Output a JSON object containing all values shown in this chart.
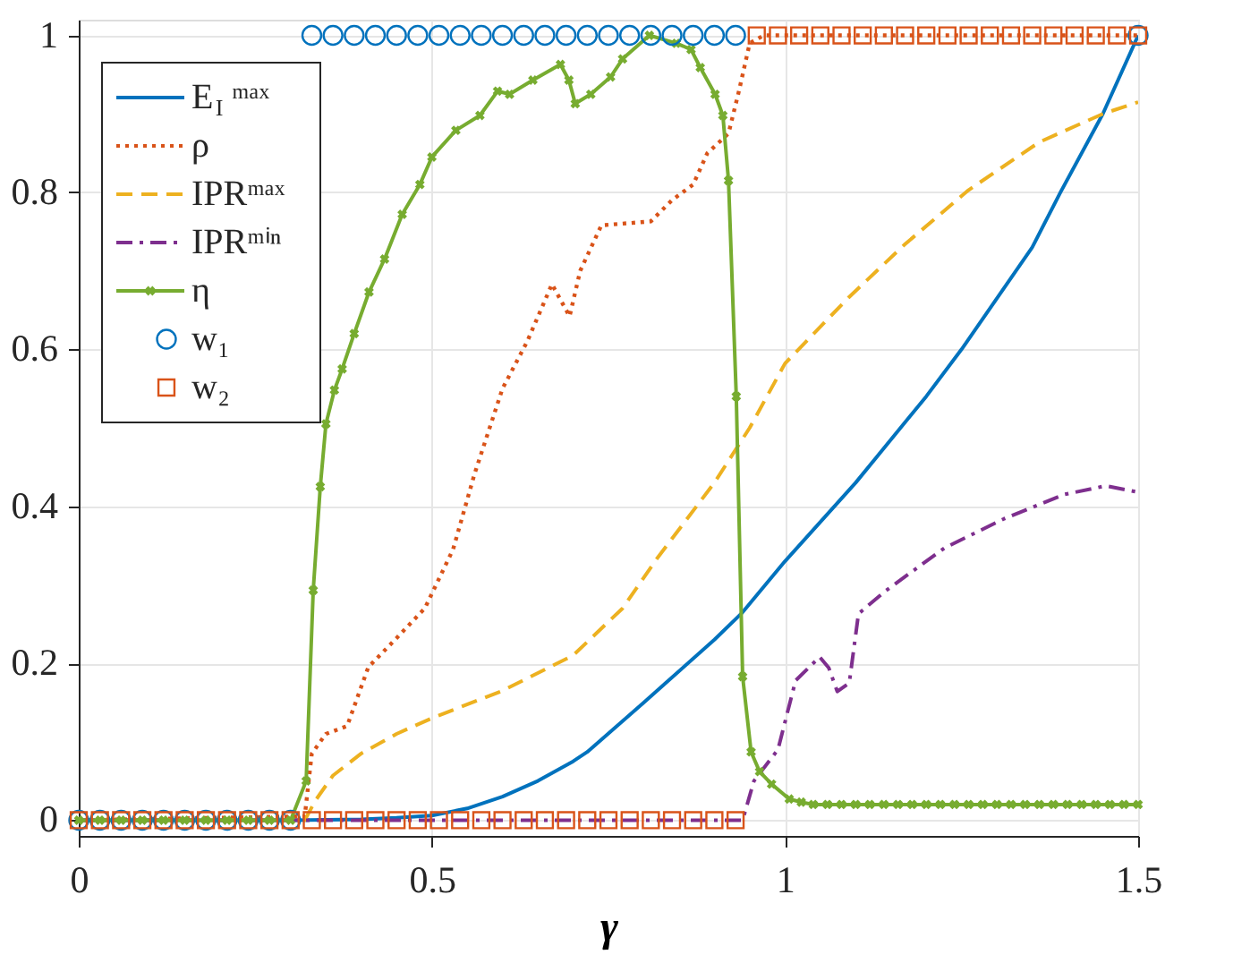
{
  "chart_data": {
    "type": "line",
    "xlabel": "γ",
    "xlim": [
      0,
      1.5
    ],
    "ylim": [
      -0.02,
      1.02
    ],
    "xticks": [
      0,
      0.5,
      1,
      1.5
    ],
    "yticks": [
      0,
      0.2,
      0.4,
      0.6,
      0.8,
      1
    ],
    "grid": true,
    "legend": "top left",
    "series": [
      {
        "name": "E$_{I}$ᵐᵃˣ",
        "color": "#0072bd",
        "line_style": "solid",
        "x": [
          0,
          0.3,
          0.4,
          0.45,
          0.5,
          0.55,
          0.6,
          0.65,
          0.7,
          0.72,
          0.8,
          0.9,
          0.94,
          1.0,
          1.1,
          1.2,
          1.25,
          1.3,
          1.35,
          1.39,
          1.45,
          1.5
        ],
        "values": [
          0,
          0,
          0.001,
          0.003,
          0.006,
          0.015,
          0.03,
          0.05,
          0.075,
          0.087,
          0.15,
          0.23,
          0.265,
          0.33,
          0.43,
          0.54,
          0.6,
          0.665,
          0.73,
          0.8,
          0.9,
          1.0
        ]
      },
      {
        "name": "ρ",
        "color": "#d95319",
        "line_style": "dotted",
        "x": [
          0,
          0.32,
          0.33,
          0.35,
          0.38,
          0.41,
          0.45,
          0.49,
          0.53,
          0.56,
          0.6,
          0.635,
          0.67,
          0.695,
          0.71,
          0.74,
          0.81,
          0.84,
          0.87,
          0.89,
          0.92,
          0.935,
          0.95,
          0.97,
          1.0,
          1.5
        ],
        "values": [
          0,
          0.005,
          0.085,
          0.11,
          0.12,
          0.195,
          0.232,
          0.27,
          0.345,
          0.44,
          0.55,
          0.61,
          0.683,
          0.642,
          0.7,
          0.758,
          0.763,
          0.79,
          0.81,
          0.85,
          0.875,
          0.93,
          0.99,
          1.0,
          1.0,
          1.0
        ]
      },
      {
        "name": "IPRᵐᵃˣ",
        "color": "#edb120",
        "line_style": "dashed",
        "x": [
          0,
          0.32,
          0.335,
          0.36,
          0.4,
          0.45,
          0.5,
          0.6,
          0.7,
          0.77,
          0.82,
          0.9,
          0.95,
          1.0,
          1.09,
          1.17,
          1.26,
          1.36,
          1.45,
          1.5
        ],
        "values": [
          0,
          0,
          0.025,
          0.057,
          0.085,
          0.11,
          0.13,
          0.165,
          0.21,
          0.27,
          0.335,
          0.43,
          0.5,
          0.582,
          0.666,
          0.734,
          0.803,
          0.864,
          0.9,
          0.915
        ]
      },
      {
        "name": "IPRᵐⁱⁿ",
        "color": "#7e2f8e",
        "line_style": "dashdot",
        "x": [
          0,
          0.94,
          0.956,
          0.99,
          1.015,
          1.049,
          1.062,
          1.074,
          1.091,
          1.104,
          1.142,
          1.226,
          1.31,
          1.395,
          1.454,
          1.5
        ],
        "values": [
          0,
          0,
          0.05,
          0.09,
          0.178,
          0.208,
          0.194,
          0.164,
          0.175,
          0.263,
          0.292,
          0.347,
          0.384,
          0.415,
          0.426,
          0.418
        ]
      },
      {
        "name": "η",
        "color": "#77ac30",
        "line_style": "solid",
        "marker": "cross",
        "x": [
          0,
          0.03,
          0.06,
          0.09,
          0.12,
          0.15,
          0.18,
          0.21,
          0.24,
          0.27,
          0.3,
          0.322,
          0.332,
          0.342,
          0.35,
          0.362,
          0.373,
          0.39,
          0.411,
          0.433,
          0.458,
          0.483,
          0.5,
          0.534,
          0.568,
          0.593,
          0.61,
          0.643,
          0.682,
          0.694,
          0.703,
          0.725,
          0.753,
          0.77,
          0.808,
          0.846,
          0.867,
          0.88,
          0.901,
          0.912,
          0.92,
          0.931,
          0.94,
          0.952,
          0.964,
          0.981,
          1.006,
          1.023,
          1.04,
          1.06,
          1.08,
          1.1,
          1.12,
          1.14,
          1.16,
          1.18,
          1.2,
          1.22,
          1.24,
          1.26,
          1.28,
          1.3,
          1.32,
          1.34,
          1.36,
          1.38,
          1.4,
          1.42,
          1.44,
          1.46,
          1.48,
          1.5
        ],
        "values": [
          0,
          0,
          0,
          0,
          0,
          0,
          0,
          0,
          0,
          0,
          0,
          0.05,
          0.293,
          0.425,
          0.505,
          0.548,
          0.575,
          0.62,
          0.673,
          0.715,
          0.772,
          0.81,
          0.845,
          0.879,
          0.898,
          0.929,
          0.925,
          0.943,
          0.963,
          0.943,
          0.913,
          0.925,
          0.947,
          0.97,
          1.0,
          0.99,
          0.982,
          0.959,
          0.925,
          0.898,
          0.815,
          0.54,
          0.183,
          0.087,
          0.062,
          0.046,
          0.027,
          0.023,
          0.02,
          0.02,
          0.02,
          0.02,
          0.02,
          0.02,
          0.02,
          0.02,
          0.02,
          0.02,
          0.02,
          0.02,
          0.02,
          0.02,
          0.02,
          0.02,
          0.02,
          0.02,
          0.02,
          0.02,
          0.02,
          0.02,
          0.02,
          0.02
        ]
      },
      {
        "name": "w₁",
        "color": "#0072bd",
        "type": "scatter",
        "marker": "circle",
        "x": [
          0,
          0.03,
          0.06,
          0.09,
          0.12,
          0.15,
          0.18,
          0.21,
          0.24,
          0.27,
          0.3,
          0.33,
          0.36,
          0.39,
          0.42,
          0.45,
          0.48,
          0.51,
          0.54,
          0.57,
          0.6,
          0.63,
          0.66,
          0.69,
          0.72,
          0.75,
          0.78,
          0.81,
          0.84,
          0.87,
          0.9,
          0.93,
          0.96,
          0.99,
          1.02,
          1.05,
          1.08,
          1.11,
          1.14,
          1.17,
          1.2,
          1.23,
          1.26,
          1.29,
          1.32,
          1.35,
          1.38,
          1.41,
          1.44,
          1.47,
          1.5
        ],
        "values": [
          0,
          0,
          0,
          0,
          0,
          0,
          0,
          0,
          0,
          0,
          0,
          1,
          1,
          1,
          1,
          1,
          1,
          1,
          1,
          1,
          1,
          1,
          1,
          1,
          1,
          1,
          1,
          1,
          1,
          1,
          1,
          1,
          null,
          null,
          null,
          null,
          null,
          null,
          null,
          null,
          null,
          null,
          null,
          null,
          null,
          null,
          null,
          null,
          null,
          null,
          1
        ]
      },
      {
        "name": "w₂",
        "color": "#d95319",
        "type": "scatter",
        "marker": "square",
        "x": [
          0,
          0.03,
          0.06,
          0.09,
          0.12,
          0.15,
          0.18,
          0.21,
          0.24,
          0.27,
          0.3,
          0.33,
          0.36,
          0.39,
          0.42,
          0.45,
          0.48,
          0.51,
          0.54,
          0.57,
          0.6,
          0.63,
          0.66,
          0.69,
          0.72,
          0.75,
          0.78,
          0.81,
          0.84,
          0.87,
          0.9,
          0.93,
          0.96,
          0.99,
          1.02,
          1.05,
          1.08,
          1.11,
          1.14,
          1.17,
          1.2,
          1.23,
          1.26,
          1.29,
          1.32,
          1.35,
          1.38,
          1.41,
          1.44,
          1.47,
          1.5
        ],
        "values": [
          0,
          0,
          0,
          0,
          0,
          0,
          0,
          0,
          0,
          0,
          0,
          0,
          0,
          0,
          0,
          0,
          0,
          0,
          0,
          0,
          0,
          0,
          0,
          0,
          0,
          0,
          0,
          0,
          0,
          0,
          0,
          0,
          1,
          1,
          1,
          1,
          1,
          1,
          1,
          1,
          1,
          1,
          1,
          1,
          1,
          1,
          1,
          1,
          1,
          1,
          1
        ]
      }
    ]
  }
}
